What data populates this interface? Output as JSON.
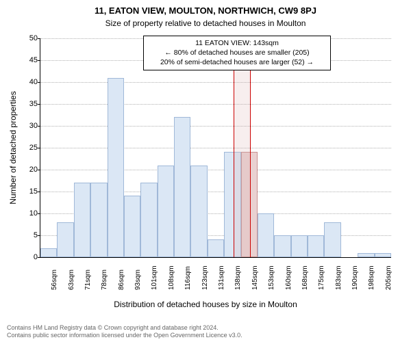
{
  "title": "11, EATON VIEW, MOULTON, NORTHWICH, CW9 8PJ",
  "subtitle": "Size of property relative to detached houses in Moulton",
  "ylabel": "Number of detached properties",
  "xaxis_title": "Distribution of detached houses by size in Moulton",
  "chart": {
    "type": "histogram",
    "y": {
      "min": 0,
      "max": 50,
      "step": 5
    },
    "categories": [
      "56sqm",
      "63sqm",
      "71sqm",
      "78sqm",
      "86sqm",
      "93sqm",
      "101sqm",
      "108sqm",
      "116sqm",
      "123sqm",
      "131sqm",
      "138sqm",
      "145sqm",
      "153sqm",
      "160sqm",
      "168sqm",
      "175sqm",
      "183sqm",
      "190sqm",
      "198sqm",
      "205sqm"
    ],
    "values": [
      2,
      8,
      17,
      17,
      41,
      14,
      17,
      21,
      32,
      21,
      4,
      24,
      24,
      10,
      5,
      5,
      5,
      8,
      0,
      1,
      1
    ],
    "highlight_index": 12,
    "bar_color": "#dbe7f5",
    "bar_border": "#a0b8d8",
    "highlight_bar_color": "#e9d1d1",
    "highlight_border": "#c89090",
    "grid_color": "#b0b0b0",
    "background_color": "#ffffff",
    "vline_color": "#cc0000",
    "label_fontsize": 12,
    "tick_fontsize": 11,
    "xlabel_fontsize": 10
  },
  "marker": {
    "ghost_left_cat": 11,
    "ghost_right_cat": 12,
    "line1": "11 EATON VIEW: 143sqm",
    "line2": "← 80% of detached houses are smaller (205)",
    "line3": "20% of semi-detached houses are larger (52) →"
  },
  "credit_line1": "Contains HM Land Registry data © Crown copyright and database right 2024.",
  "credit_line2": "Contains public sector information licensed under the Open Government Licence v3.0."
}
